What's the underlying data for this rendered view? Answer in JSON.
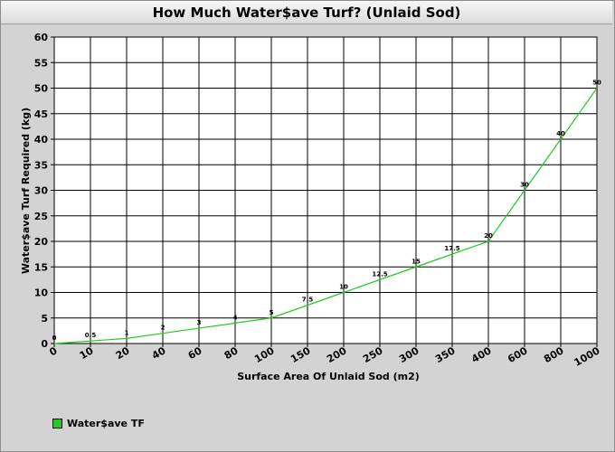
{
  "chart_data": {
    "type": "line",
    "title": "How Much Water$ave Turf? (Unlaid Sod)",
    "xlabel": "Surface Area Of Unlaid Sod (m2)",
    "ylabel": "Water$ave Turf Required (kg)",
    "categories": [
      "0",
      "10",
      "20",
      "40",
      "60",
      "80",
      "100",
      "150",
      "200",
      "250",
      "300",
      "350",
      "400",
      "600",
      "800",
      "1000"
    ],
    "y_ticks": [
      "0",
      "5",
      "10",
      "15",
      "20",
      "25",
      "30",
      "35",
      "40",
      "45",
      "50",
      "55",
      "60"
    ],
    "ylim": [
      0,
      60
    ],
    "grid": true,
    "series": [
      {
        "name": "Water$ave TF",
        "color": "#22cc22",
        "values": [
          0,
          0.5,
          1,
          2,
          3,
          4,
          5,
          7.5,
          10,
          12.5,
          15,
          17.5,
          20,
          30,
          40,
          50
        ],
        "labels": [
          "0",
          "0.5",
          "1",
          "2",
          "3",
          "4",
          "5",
          "7.5",
          "10",
          "12.5",
          "15",
          "17.5",
          "20",
          "30",
          "40",
          "50"
        ]
      }
    ],
    "legend_position": "bottom-left"
  }
}
